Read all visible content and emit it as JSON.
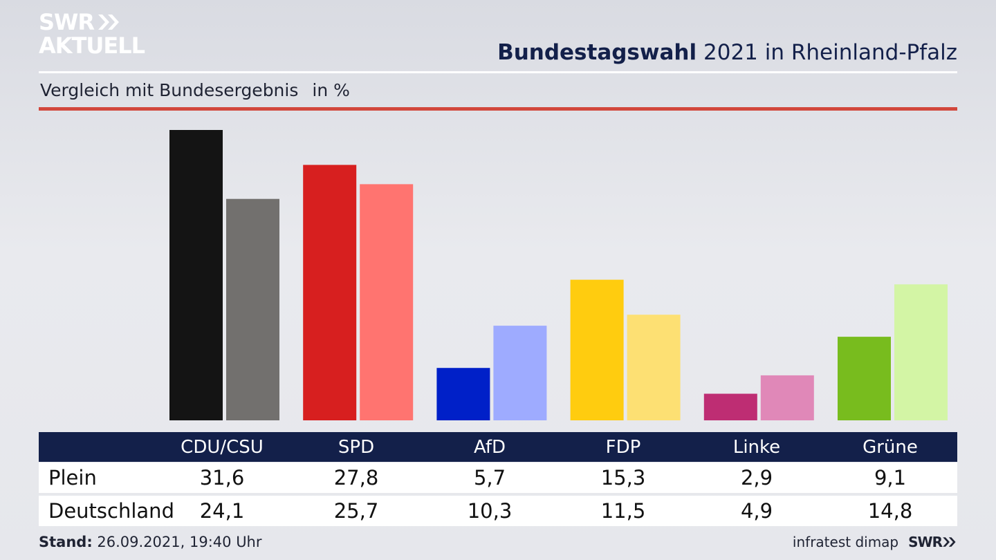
{
  "brand": {
    "line1": "SWR",
    "line2": "AKTUELL",
    "footer_logo": "SWR"
  },
  "header": {
    "title_bold": "Bundestagswahl",
    "title_rest": "2021 in Rheinland-Pfalz",
    "subtitle": "Vergleich mit Bundesergebnis",
    "unit": "in %"
  },
  "colors": {
    "navy": "#13204a",
    "red_rule": "#d2473c",
    "parties": {
      "CDU/CSU": [
        "#141414",
        "#72706e"
      ],
      "SPD": [
        "#d71f1f",
        "#ff7470"
      ],
      "AfD": [
        "#0020c8",
        "#9eabff"
      ],
      "FDP": [
        "#ffcc0f",
        "#fde073"
      ],
      "Linke": [
        "#be2d73",
        "#e088b8"
      ],
      "Grüne": [
        "#78bc1e",
        "#d3f5a5"
      ]
    }
  },
  "chart_data": {
    "type": "bar",
    "title": "Bundestagswahl 2021 in Rheinland-Pfalz",
    "subtitle": "Vergleich mit Bundesergebnis",
    "ylabel": "in %",
    "categories": [
      "CDU/CSU",
      "SPD",
      "AfD",
      "FDP",
      "Linke",
      "Grüne"
    ],
    "series": [
      {
        "name": "Plein",
        "values": [
          31.6,
          27.8,
          5.7,
          15.3,
          2.9,
          9.1
        ]
      },
      {
        "name": "Deutschland",
        "values": [
          24.1,
          25.7,
          10.3,
          11.5,
          4.9,
          14.8
        ]
      }
    ],
    "ylim": [
      0,
      31.6
    ],
    "grid": false
  },
  "table": {
    "rows": [
      {
        "label": "Plein",
        "values": [
          "31,6",
          "27,8",
          "5,7",
          "15,3",
          "2,9",
          "9,1"
        ]
      },
      {
        "label": "Deutschland",
        "values": [
          "24,1",
          "25,7",
          "10,3",
          "11,5",
          "4,9",
          "14,8"
        ]
      }
    ]
  },
  "footer": {
    "stand_label": "Stand:",
    "stand_value": "26.09.2021, 19:40 Uhr",
    "source": "infratest dimap"
  }
}
